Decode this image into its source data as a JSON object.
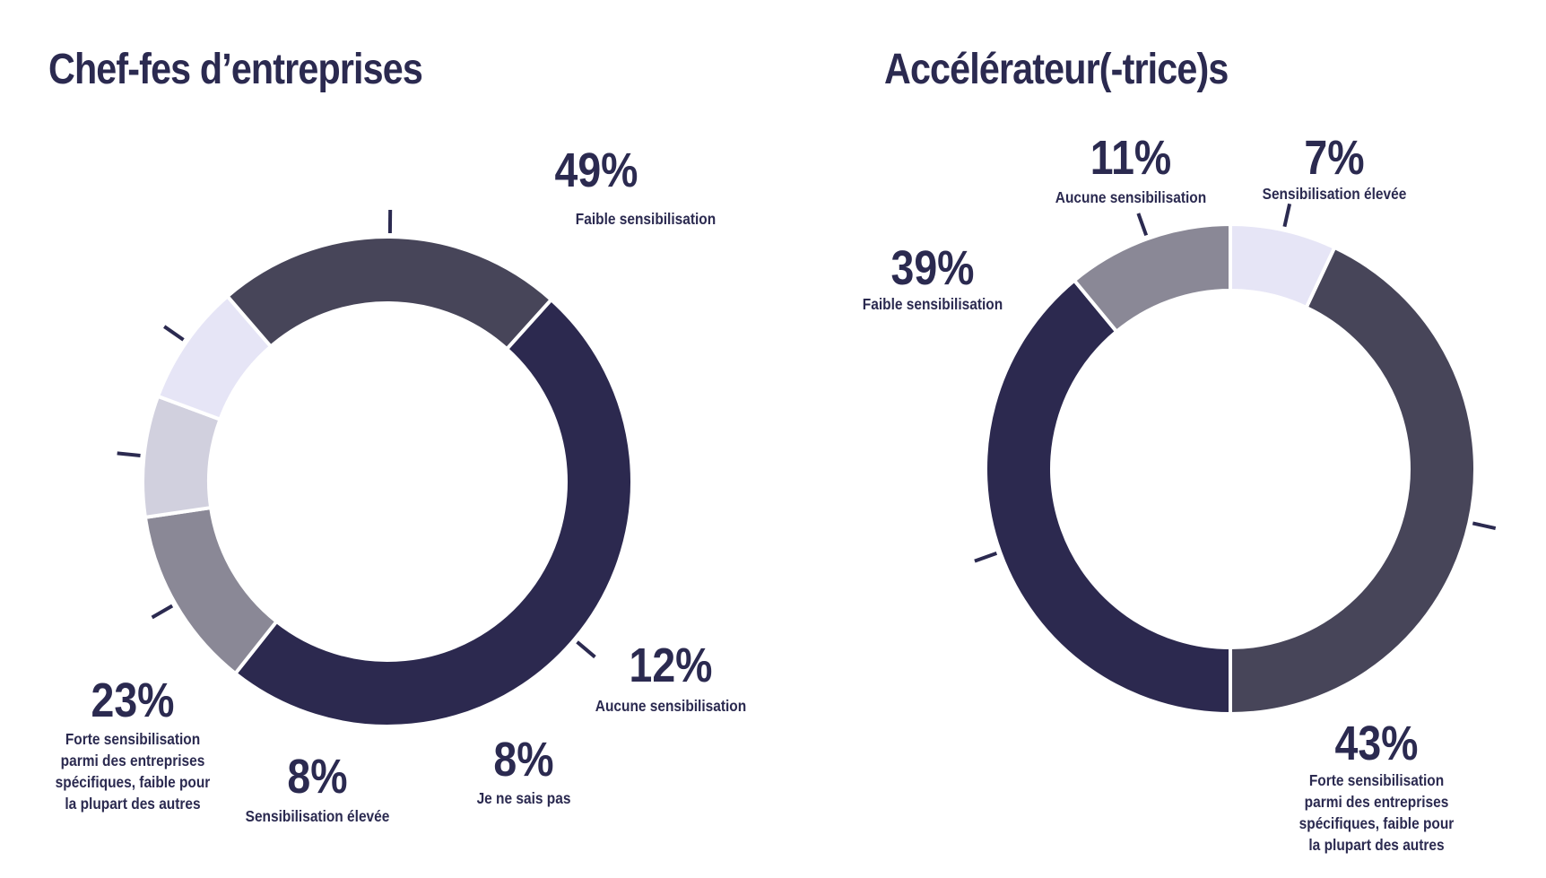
{
  "chart_data": [
    {
      "type": "pie",
      "title": "Chef-fes d’entreprises",
      "slices": [
        {
          "label": "Faible sensibilisation",
          "value": 49,
          "value_label": "49%",
          "color": "#2c294f"
        },
        {
          "label": "Aucune sensibilisation",
          "value": 12,
          "value_label": "12%",
          "color": "#8a8896"
        },
        {
          "label": "Je ne sais pas",
          "value": 8,
          "value_label": "8%",
          "color": "#d1d0de"
        },
        {
          "label": "Sensibilisation élevée",
          "value": 8,
          "value_label": "8%",
          "color": "#e6e5f6"
        },
        {
          "label": "Forte sensibilisation parmi des entreprises spécifiques, faible pour la plupart des autres",
          "label_lines": [
            "Forte sensibilisation",
            "parmi des entreprises",
            "spécifiques, faible pour",
            "la plupart des autres"
          ],
          "value": 23,
          "value_label": "23%",
          "color": "#474559"
        }
      ]
    },
    {
      "type": "pie",
      "title": "Accélérateur(-trice)s",
      "slices": [
        {
          "label": "Sensibilisation élevée",
          "value": 7,
          "value_label": "7%",
          "color": "#e6e5f6"
        },
        {
          "label": "Forte sensibilisation parmi des entreprises spécifiques, faible pour la plupart des autres",
          "label_lines": [
            "Forte sensibilisation",
            "parmi des entreprises",
            "spécifiques, faible pour",
            "la plupart des autres"
          ],
          "value": 43,
          "value_label": "43%",
          "color": "#474559"
        },
        {
          "label": "Faible sensibilisation",
          "value": 39,
          "value_label": "39%",
          "color": "#2c294f"
        },
        {
          "label": "Aucune sensibilisation",
          "value": 11,
          "value_label": "11%",
          "color": "#8a8896"
        }
      ]
    }
  ]
}
